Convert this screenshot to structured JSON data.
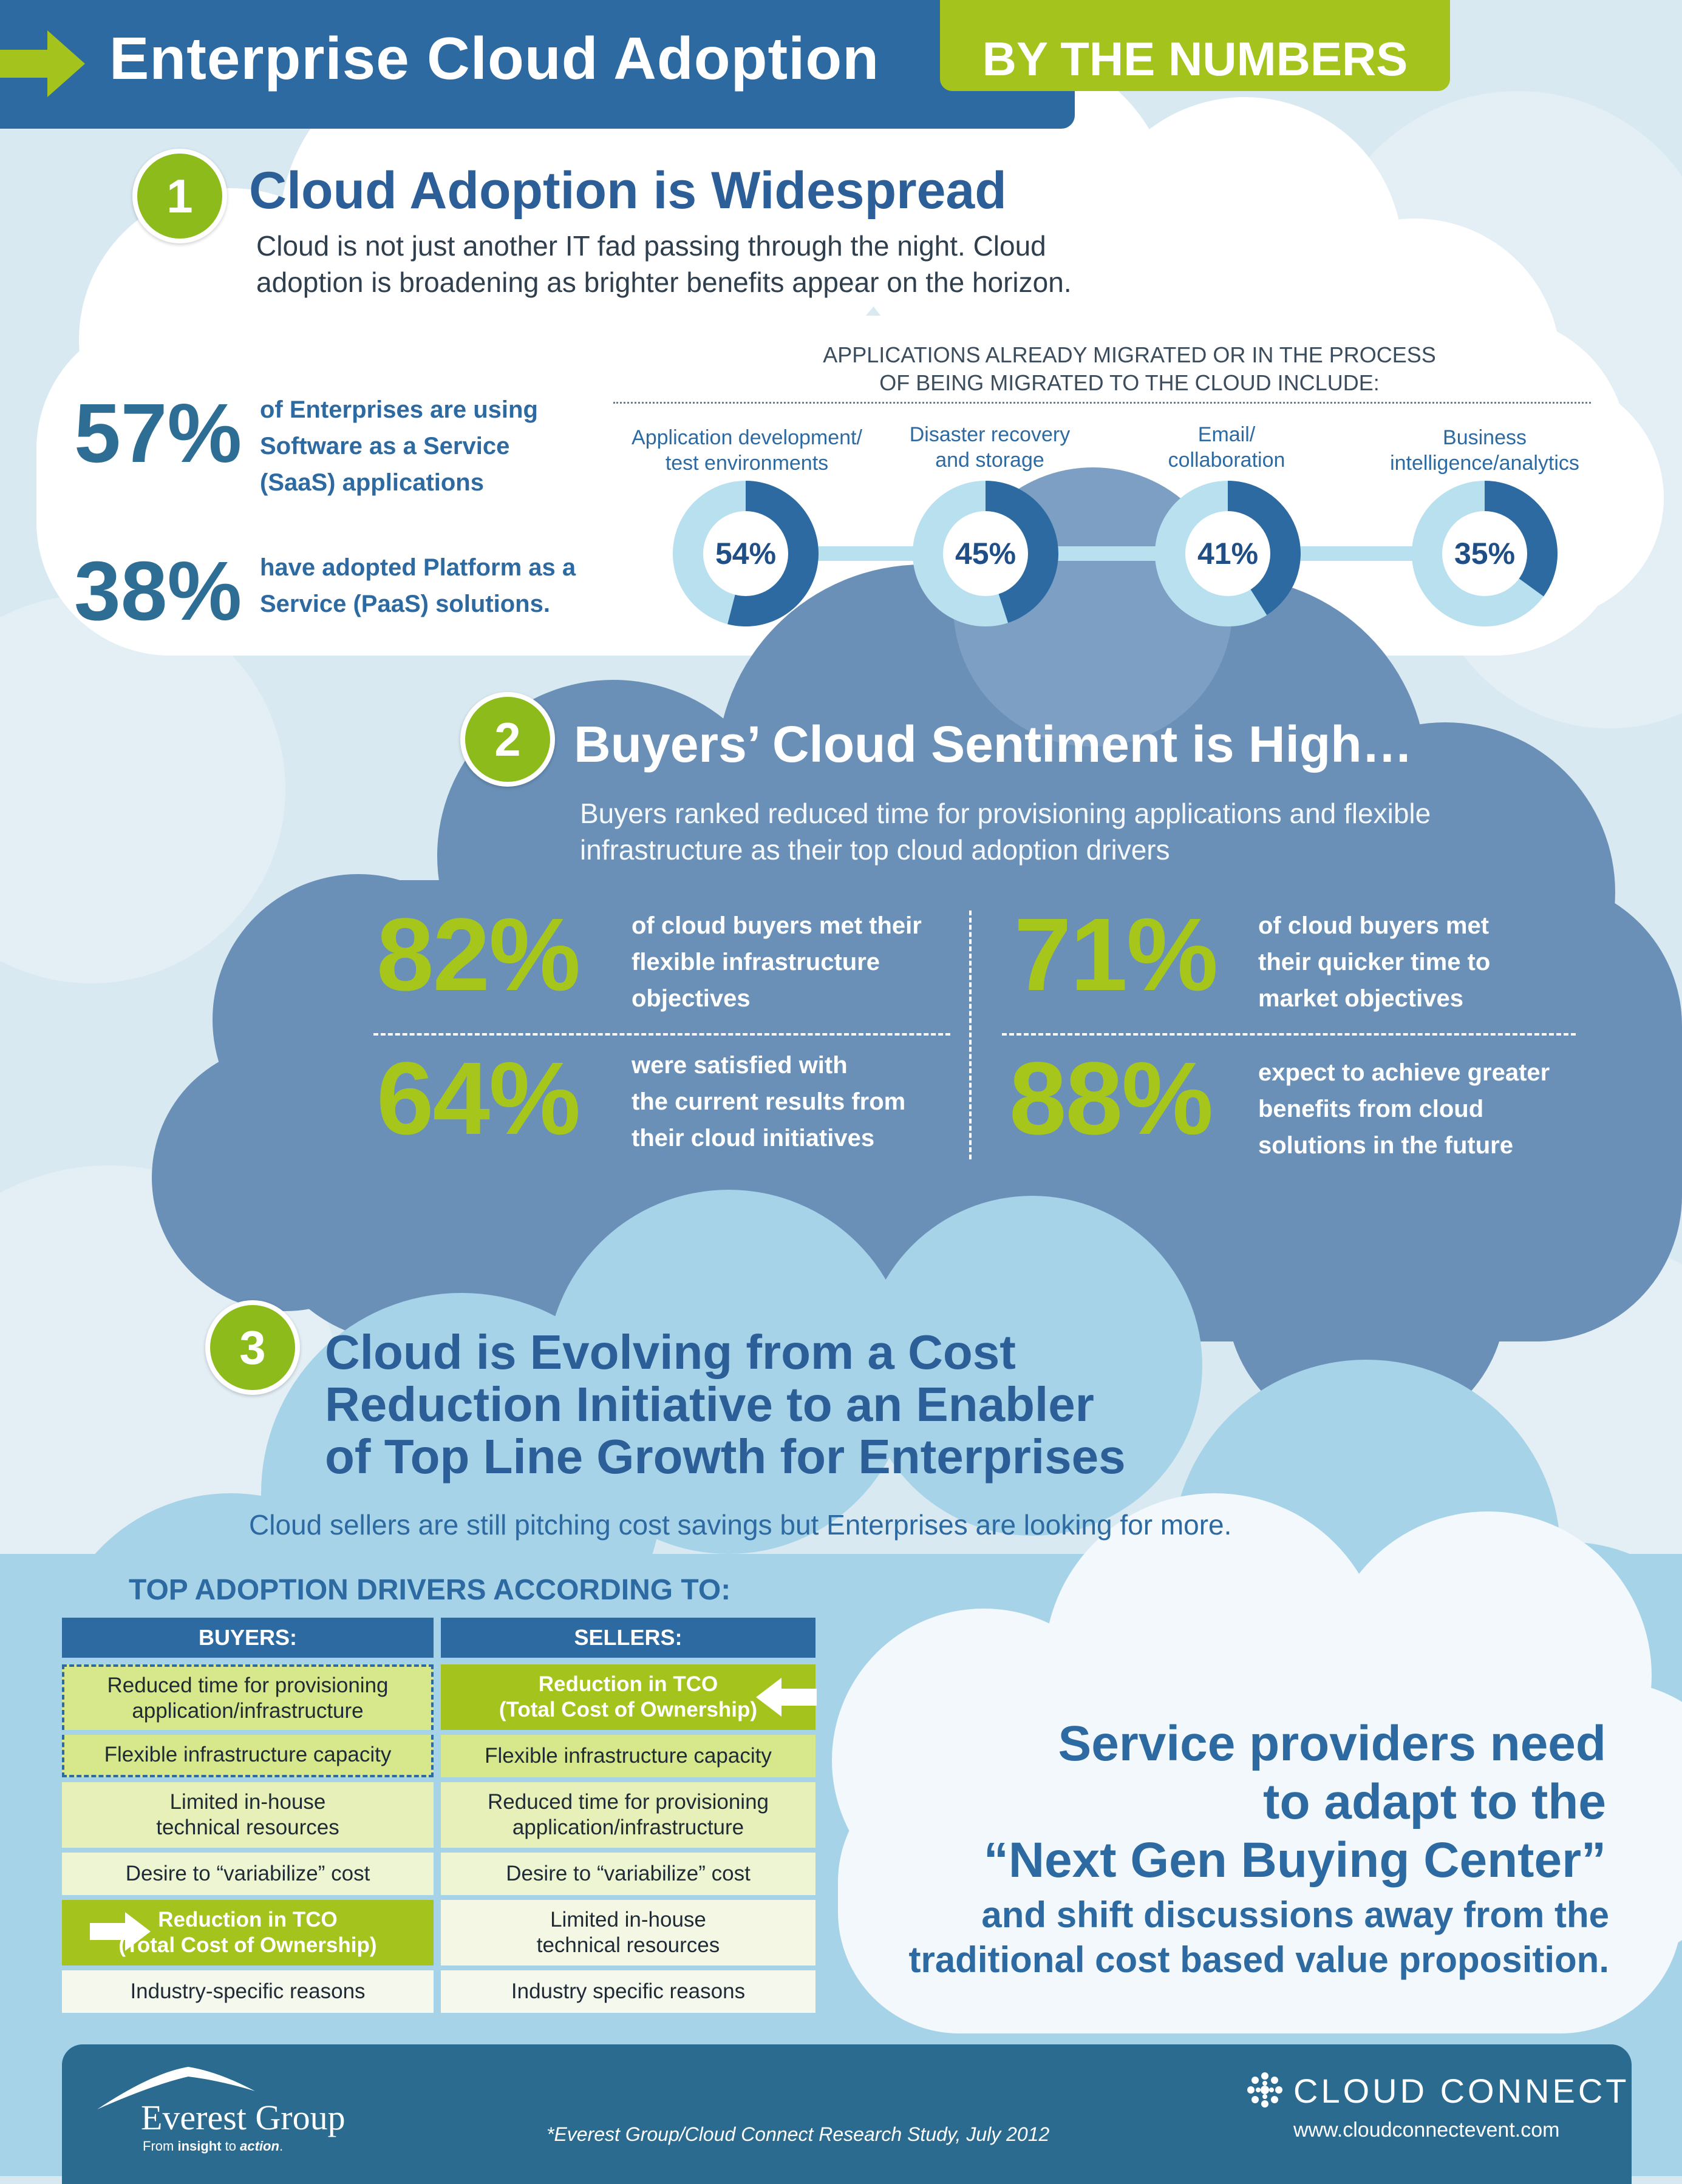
{
  "header": {
    "title": "Enterprise Cloud Adoption",
    "badge": "BY THE NUMBERS"
  },
  "section1": {
    "number": "1",
    "title": "Cloud Adoption is Widespread",
    "intro_line1": "Cloud is not just another IT fad passing through the night. Cloud",
    "intro_line2": "adoption is broadening as brighter benefits appear on the horizon.",
    "stats": [
      {
        "pct": "57%",
        "line1": "of Enterprises are using",
        "line2": "Software as a Service",
        "line3": "(SaaS) applications"
      },
      {
        "pct": "38%",
        "line1": "have adopted Platform as a",
        "line2": "Service (PaaS) solutions."
      }
    ],
    "apps_header_line1": "APPLICATIONS ALREADY MIGRATED OR IN THE PROCESS",
    "apps_header_line2": "OF BEING MIGRATED TO THE CLOUD INCLUDE:",
    "apps": [
      {
        "label_line1": "Application development/",
        "label_line2": "test environments",
        "pct_text": "54%",
        "value": 54
      },
      {
        "label_line1": "Disaster recovery",
        "label_line2": "and storage",
        "pct_text": "45%",
        "value": 45
      },
      {
        "label_line1": "Email/",
        "label_line2": "collaboration",
        "pct_text": "41%",
        "value": 41
      },
      {
        "label_line1": "Business",
        "label_line2": "intelligence/analytics",
        "pct_text": "35%",
        "value": 35
      }
    ]
  },
  "section2": {
    "number": "2",
    "title": "Buyers’ Cloud Sentiment is High…",
    "intro_line1": "Buyers ranked reduced time for provisioning applications and flexible",
    "intro_line2": "infrastructure as their top cloud adoption drivers",
    "stats": [
      {
        "pct": "82%",
        "line1": "of cloud buyers met their",
        "line2": "flexible infrastructure",
        "line3": "objectives"
      },
      {
        "pct": "71%",
        "line1": "of cloud buyers met",
        "line2": "their quicker time to",
        "line3": "market objectives"
      },
      {
        "pct": "64%",
        "line1": "were satisfied with",
        "line2": "the current results from",
        "line3": "their cloud initiatives"
      },
      {
        "pct": "88%",
        "line1": "expect to achieve greater",
        "line2": "benefits from cloud",
        "line3": "solutions in the future"
      }
    ]
  },
  "section3": {
    "number": "3",
    "title_line1": "Cloud is Evolving from a Cost",
    "title_line2": "Reduction Initiative to an Enabler",
    "title_line3": "of Top Line Growth for Enterprises",
    "intro": "Cloud sellers are still pitching cost savings but Enterprises are looking for more.",
    "table_title": "TOP ADOPTION DRIVERS ACCORDING TO:",
    "buyers_header": "BUYERS:",
    "sellers_header": "SELLERS:",
    "buyers": [
      {
        "line1": "Reduced time for provisioning",
        "line2": "application/infrastructure"
      },
      {
        "line1": "Flexible infrastructure capacity",
        "line2": ""
      },
      {
        "line1": "Limited in-house",
        "line2": "technical resources"
      },
      {
        "line1": "Desire to “variabilize” cost",
        "line2": ""
      },
      {
        "line1": "Reduction in TCO",
        "line2": "(Total Cost of Ownership)"
      },
      {
        "line1": "Industry-specific reasons",
        "line2": ""
      }
    ],
    "sellers": [
      {
        "line1": "Reduction in TCO",
        "line2": "(Total Cost of Ownership)"
      },
      {
        "line1": "Flexible infrastructure capacity",
        "line2": ""
      },
      {
        "line1": "Reduced time for provisioning",
        "line2": "application/infrastructure"
      },
      {
        "line1": "Desire to “variabilize” cost",
        "line2": ""
      },
      {
        "line1": "Limited in-house",
        "line2": "technical resources"
      },
      {
        "line1": "Industry specific reasons",
        "line2": ""
      }
    ],
    "callout_line1": "Service providers need",
    "callout_line2": "to adapt to the",
    "callout_line3": "“Next Gen Buying Center”",
    "callout_line4": "and shift discussions away from the",
    "callout_line5": "traditional cost based value proposition."
  },
  "footer": {
    "everest_name": "Everest Group",
    "everest_tag_a": "From ",
    "everest_tag_b": "insight",
    "everest_tag_c": " to ",
    "everest_tag_d": "action",
    "everest_tag_e": ".",
    "source": "*Everest Group/Cloud Connect Research Study, July 2012",
    "cc_name": "CLOUD CONNECT",
    "cc_url": "www.cloudconnectevent.com"
  },
  "colors": {
    "brand_blue": "#2d6aa1",
    "accent_green": "#a4c31c",
    "donut_dark": "#2d6aa1",
    "donut_light": "#b8e0ef"
  },
  "icons": {
    "header_arrow": "arrow-right-icon",
    "table_arrow": "arrow-icon",
    "cloud_connect_logo": "cloud-connect-logo-icon",
    "everest_logo": "everest-logo-icon"
  }
}
